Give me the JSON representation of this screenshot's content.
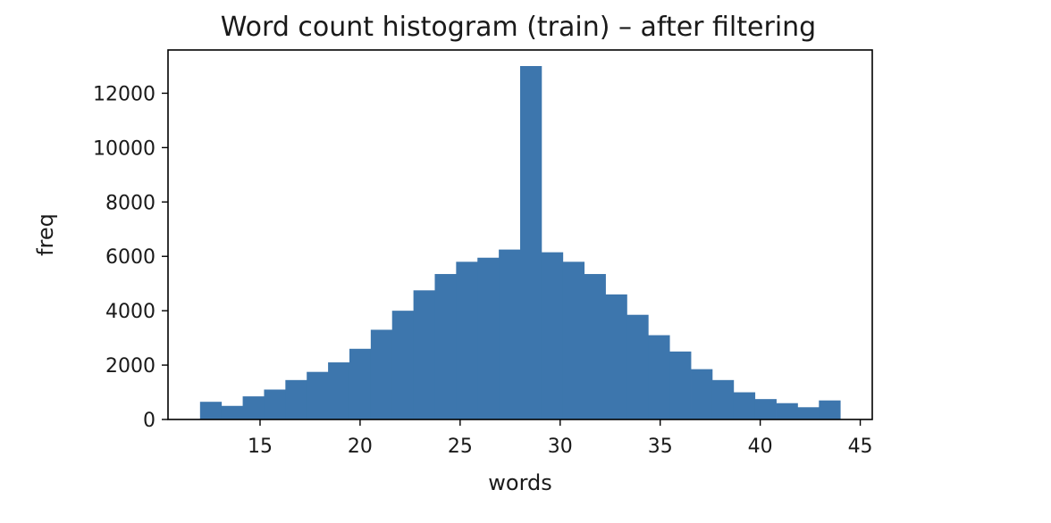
{
  "chart_data": {
    "type": "bar",
    "title": "Word count histogram (train) – after filtering",
    "xlabel": "words",
    "ylabel": "freq",
    "xlim": [
      10.4,
      45.6
    ],
    "ylim": [
      0,
      13000
    ],
    "xticks": [
      15,
      20,
      25,
      30,
      35,
      40,
      45
    ],
    "yticks": [
      0,
      2000,
      4000,
      6000,
      8000,
      10000,
      12000
    ],
    "grid": false,
    "bar_color": "#3d76ad",
    "bin_edges": [
      12.0,
      13.0667,
      14.1333,
      15.2,
      16.2667,
      17.3333,
      18.4,
      19.4667,
      20.5333,
      21.6,
      22.6667,
      23.7333,
      24.8,
      25.8667,
      26.9333,
      28.0,
      29.0667,
      30.1333,
      31.2,
      32.2667,
      33.3333,
      34.4,
      35.4667,
      36.5333,
      37.6,
      38.6667,
      39.7333,
      40.8,
      41.8667,
      42.9333,
      44.0
    ],
    "values": [
      650,
      500,
      850,
      1100,
      1450,
      1750,
      2100,
      2600,
      3300,
      4000,
      4750,
      5350,
      5800,
      5950,
      6250,
      13000,
      6150,
      5800,
      5350,
      4600,
      3850,
      3100,
      2500,
      1850,
      1450,
      1000,
      750,
      600,
      450,
      700
    ]
  }
}
